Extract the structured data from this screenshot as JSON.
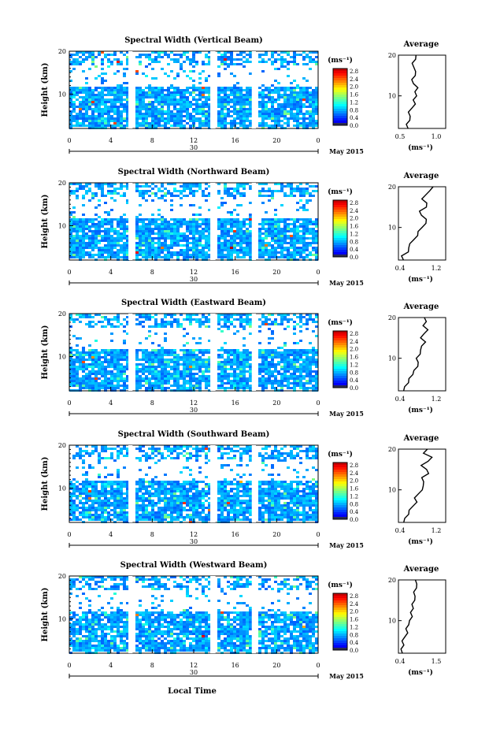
{
  "figure": {
    "x_axis_title": "Local Time",
    "date_label": "May 2015",
    "day_label": "30",
    "time_ticks": [
      "0",
      "4",
      "8",
      "12",
      "16",
      "20",
      "0"
    ],
    "height_ticks": [
      "20",
      "10"
    ],
    "colorbar_unit": "(ms⁻¹)",
    "colorbar_ticks": [
      "2.8",
      "2.4",
      "2.0",
      "1.6",
      "1.2",
      "0.8",
      "0.4",
      "0.0"
    ],
    "avg_title": "Average",
    "avg_unit": "(ms⁻¹)",
    "y_label": "Height (km)"
  },
  "chart_data": [
    {
      "type": "heatmap",
      "title": "Spectral Width (Vertical Beam)",
      "xlabel": "Local Time",
      "ylabel": "Height (km)",
      "x_range_hours": [
        0,
        24
      ],
      "y_range_km": [
        2,
        20
      ],
      "color_range": [
        0.0,
        3.0
      ],
      "data_gaps_hours": [
        [
          5.7,
          6.1
        ],
        [
          13.6,
          14.1
        ],
        [
          17.6,
          18.0
        ]
      ],
      "average_profile": {
        "xlabel": "(ms⁻¹)",
        "x_ticks": [
          "0.5",
          "1.0"
        ],
        "xlim": [
          0.3,
          1.2
        ],
        "height_km": [
          2,
          3,
          4,
          5,
          6,
          7,
          8,
          9,
          10,
          11,
          12,
          13,
          14,
          15,
          16,
          17,
          18,
          19,
          20
        ],
        "width": [
          0.5,
          0.45,
          0.5,
          0.55,
          0.5,
          0.55,
          0.6,
          0.6,
          0.65,
          0.6,
          0.7,
          0.6,
          0.55,
          0.6,
          0.65,
          0.6,
          0.55,
          0.6,
          0.65
        ]
      }
    },
    {
      "type": "heatmap",
      "title": "Spectral Width (Northward Beam)",
      "xlabel": "Local Time",
      "ylabel": "Height (km)",
      "x_range_hours": [
        0,
        24
      ],
      "y_range_km": [
        2,
        20
      ],
      "color_range": [
        0.0,
        3.0
      ],
      "data_gaps_hours": [
        [
          5.7,
          6.1
        ],
        [
          13.6,
          14.1
        ],
        [
          17.6,
          18.0
        ]
      ],
      "average_profile": {
        "xlabel": "(ms⁻¹)",
        "x_ticks": [
          "0.4",
          "1.2"
        ],
        "xlim": [
          0.4,
          1.2
        ],
        "height_km": [
          2,
          3,
          4,
          5,
          6,
          7,
          8,
          9,
          10,
          11,
          12,
          13,
          14,
          15,
          16,
          17,
          18,
          19,
          20
        ],
        "width": [
          0.5,
          0.45,
          0.55,
          0.6,
          0.6,
          0.65,
          0.7,
          0.75,
          0.8,
          0.85,
          0.9,
          0.8,
          0.75,
          0.85,
          0.9,
          0.8,
          0.85,
          0.9,
          1.0
        ]
      }
    },
    {
      "type": "heatmap",
      "title": "Spectral Width (Eastward Beam)",
      "xlabel": "Local Time",
      "ylabel": "Height (km)",
      "x_range_hours": [
        0,
        24
      ],
      "y_range_km": [
        2,
        20
      ],
      "color_range": [
        0.0,
        3.0
      ],
      "data_gaps_hours": [
        [
          5.7,
          6.1
        ],
        [
          13.6,
          14.1
        ],
        [
          17.6,
          18.0
        ]
      ],
      "average_profile": {
        "xlabel": "(ms⁻¹)",
        "x_ticks": [
          "0.4",
          "1.2"
        ],
        "xlim": [
          0.4,
          1.2
        ],
        "height_km": [
          2,
          3,
          4,
          5,
          6,
          7,
          8,
          9,
          10,
          11,
          12,
          13,
          14,
          15,
          16,
          17,
          18,
          19,
          20
        ],
        "width": [
          0.5,
          0.5,
          0.55,
          0.6,
          0.65,
          0.65,
          0.7,
          0.75,
          0.7,
          0.75,
          0.8,
          0.8,
          0.85,
          0.75,
          0.85,
          0.9,
          0.8,
          0.9,
          0.85
        ]
      }
    },
    {
      "type": "heatmap",
      "title": "Spectral Width (Southward Beam)",
      "xlabel": "Local Time",
      "ylabel": "Height (km)",
      "x_range_hours": [
        0,
        24
      ],
      "y_range_km": [
        2,
        20
      ],
      "color_range": [
        0.0,
        3.0
      ],
      "data_gaps_hours": [
        [
          5.7,
          6.1
        ],
        [
          13.6,
          14.1
        ],
        [
          17.6,
          18.0
        ]
      ],
      "average_profile": {
        "xlabel": "(ms⁻¹)",
        "x_ticks": [
          "0.4",
          "1.2"
        ],
        "xlim": [
          0.4,
          1.2
        ],
        "height_km": [
          2,
          3,
          4,
          5,
          6,
          7,
          8,
          9,
          10,
          11,
          12,
          13,
          14,
          15,
          16,
          17,
          18,
          19,
          20
        ],
        "width": [
          0.5,
          0.5,
          0.55,
          0.6,
          0.65,
          0.7,
          0.7,
          0.75,
          0.8,
          0.8,
          0.85,
          0.8,
          0.9,
          0.85,
          0.8,
          0.9,
          0.95,
          0.85,
          0.9
        ]
      }
    },
    {
      "type": "heatmap",
      "title": "Spectral Width (Westward Beam)",
      "xlabel": "Local Time",
      "ylabel": "Height (km)",
      "x_range_hours": [
        0,
        24
      ],
      "y_range_km": [
        2,
        20
      ],
      "color_range": [
        0.0,
        3.0
      ],
      "data_gaps_hours": [
        [
          5.7,
          6.1
        ],
        [
          13.6,
          14.1
        ],
        [
          17.6,
          18.0
        ]
      ],
      "average_profile": {
        "xlabel": "(ms⁻¹)",
        "x_ticks": [
          "0.4",
          "1.5"
        ],
        "xlim": [
          0.4,
          1.5
        ],
        "height_km": [
          2,
          3,
          4,
          5,
          6,
          7,
          8,
          9,
          10,
          11,
          12,
          13,
          14,
          15,
          16,
          17,
          18,
          19,
          20
        ],
        "width": [
          0.5,
          0.45,
          0.5,
          0.5,
          0.55,
          0.6,
          0.6,
          0.65,
          0.65,
          0.7,
          0.7,
          0.75,
          0.7,
          0.75,
          0.8,
          0.75,
          0.8,
          0.85,
          0.8
        ]
      }
    }
  ]
}
